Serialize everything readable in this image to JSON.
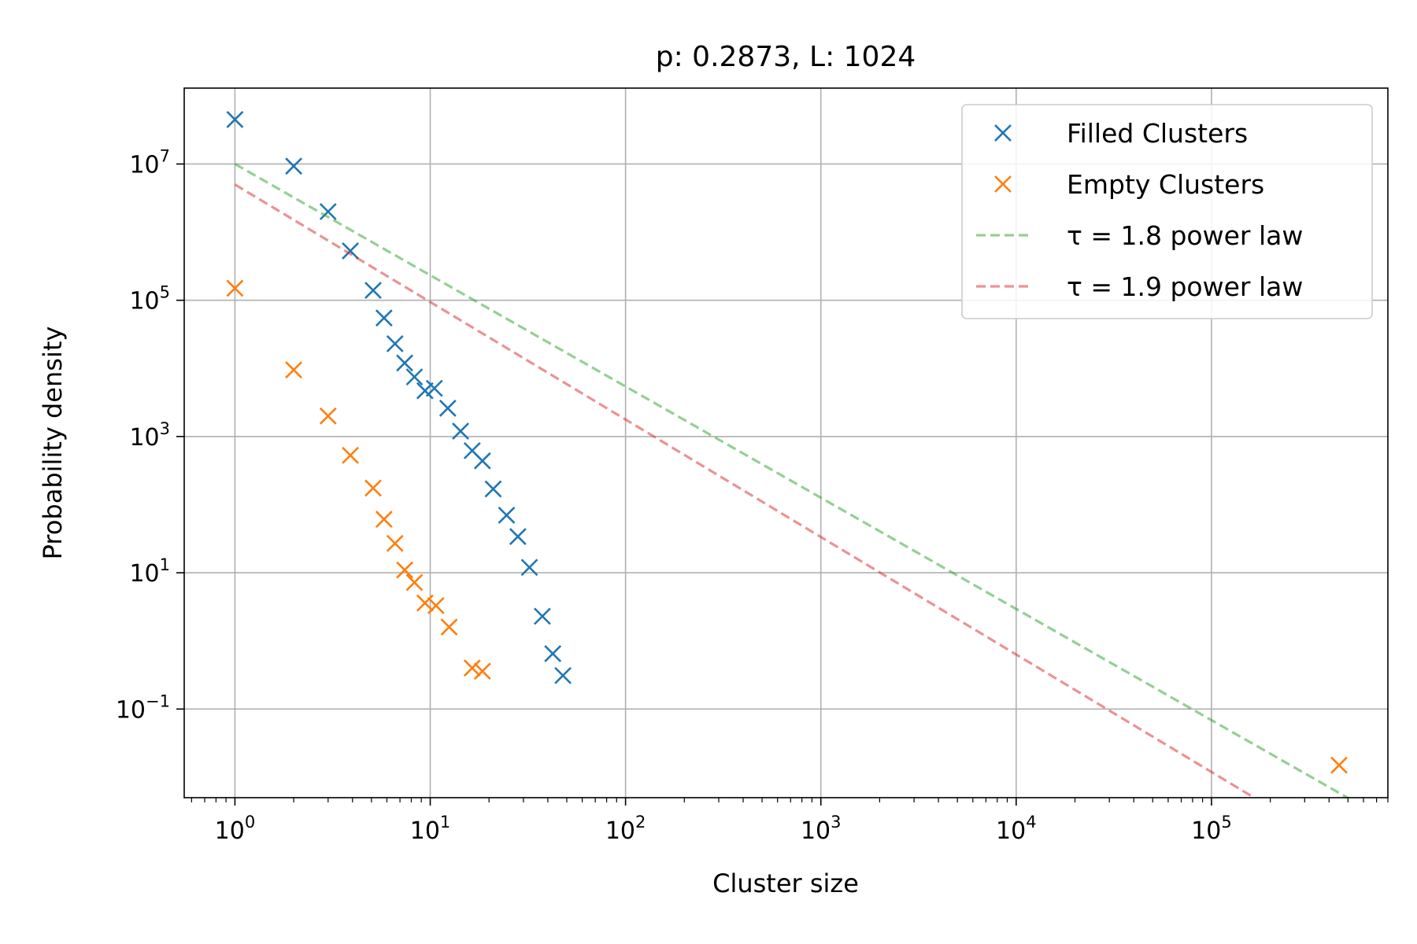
{
  "chart_data": {
    "type": "scatter",
    "title": "p: 0.2873,  L: 1024",
    "xlabel": "Cluster size",
    "ylabel": "Probability density",
    "xscale": "log",
    "yscale": "log",
    "xlim": [
      0.55,
      800000
    ],
    "ylim": [
      0.005,
      130000000
    ],
    "grid": true,
    "legend_position": "top-right",
    "x_ticks": [
      {
        "value": 1,
        "base": "10",
        "exp": "0"
      },
      {
        "value": 10,
        "base": "10",
        "exp": "1"
      },
      {
        "value": 100,
        "base": "10",
        "exp": "2"
      },
      {
        "value": 1000,
        "base": "10",
        "exp": "3"
      },
      {
        "value": 10000,
        "base": "10",
        "exp": "4"
      },
      {
        "value": 100000,
        "base": "10",
        "exp": "5"
      }
    ],
    "y_ticks": [
      {
        "value": 0.1,
        "base": "10",
        "exp": "−1"
      },
      {
        "value": 10,
        "base": "10",
        "exp": "1"
      },
      {
        "value": 1000,
        "base": "10",
        "exp": "3"
      },
      {
        "value": 100000,
        "base": "10",
        "exp": "5"
      },
      {
        "value": 10000000,
        "base": "10",
        "exp": "7"
      }
    ],
    "series": [
      {
        "name": "Filled Clusters",
        "kind": "scatter",
        "marker": "x",
        "color": "#1f77b4",
        "points": [
          [
            1,
            45000000
          ],
          [
            2,
            9300000
          ],
          [
            3,
            2000000
          ],
          [
            3.9,
            530000
          ],
          [
            5.1,
            140000
          ],
          [
            5.8,
            55000
          ],
          [
            6.6,
            23000
          ],
          [
            7.4,
            12000
          ],
          [
            8.3,
            7500
          ],
          [
            9.4,
            4700
          ],
          [
            10.5,
            5100
          ],
          [
            12.3,
            2600
          ],
          [
            14.3,
            1200
          ],
          [
            16.4,
            620
          ],
          [
            18.5,
            440
          ],
          [
            21,
            170
          ],
          [
            24.6,
            70
          ],
          [
            28.1,
            34
          ],
          [
            32.2,
            12
          ],
          [
            37.5,
            2.3
          ],
          [
            42.4,
            0.65
          ],
          [
            47.8,
            0.31
          ]
        ]
      },
      {
        "name": "Empty Clusters",
        "kind": "scatter",
        "marker": "x",
        "color": "#ff7f0e",
        "points": [
          [
            1,
            150000
          ],
          [
            2,
            9500
          ],
          [
            3,
            2000
          ],
          [
            3.9,
            530
          ],
          [
            5.1,
            175
          ],
          [
            5.8,
            61
          ],
          [
            6.6,
            27
          ],
          [
            7.4,
            11
          ],
          [
            8.3,
            7.2
          ],
          [
            9.4,
            3.6
          ],
          [
            10.7,
            3.3
          ],
          [
            12.5,
            1.6
          ],
          [
            16.4,
            0.4
          ],
          [
            18.5,
            0.36
          ],
          [
            450000,
            0.015
          ]
        ]
      },
      {
        "name": "τ = 1.8 power law",
        "kind": "line",
        "dash": true,
        "color": "#2ca02c",
        "alpha": 0.5,
        "points": [
          [
            1,
            10000000
          ],
          [
            800000,
            0.0023
          ]
        ]
      },
      {
        "name": "τ = 1.9 power law",
        "kind": "line",
        "dash": true,
        "color": "#d62728",
        "alpha": 0.5,
        "points": [
          [
            1,
            5000000
          ],
          [
            800000,
            0.00033
          ]
        ]
      }
    ]
  }
}
